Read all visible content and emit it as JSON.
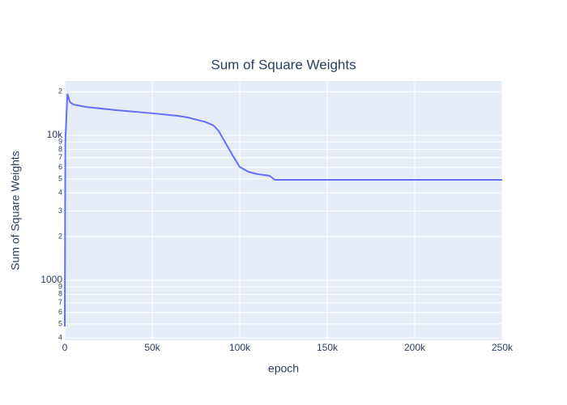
{
  "chart_data": {
    "type": "line",
    "title": "Sum of Square Weights",
    "x_label": "epoch",
    "y_label": "Sum of Square Weights",
    "x": [
      0,
      300,
      1500,
      3000,
      5000,
      12000,
      30000,
      50000,
      65000,
      70000,
      80000,
      85000,
      88000,
      92000,
      96000,
      100000,
      105000,
      110000,
      117000,
      120000,
      250000
    ],
    "values": [
      480,
      9000,
      19300,
      16900,
      16300,
      15700,
      14900,
      14200,
      13600,
      13300,
      12400,
      11700,
      10700,
      8800,
      7250,
      6050,
      5600,
      5400,
      5260,
      4930,
      4930
    ],
    "color": "#636efa",
    "xlim": [
      0,
      250000
    ],
    "xticks": [
      0,
      {
        "value": 50000,
        "label": "50k"
      },
      {
        "value": 100000,
        "label": "100k"
      },
      {
        "value": 150000,
        "label": "150k"
      },
      {
        "value": 200000,
        "label": "200k"
      },
      {
        "value": 250000,
        "label": "250k"
      }
    ],
    "ylim": [
      386,
      23700
    ],
    "log_y": true,
    "grid": true,
    "yticks": [
      {
        "value": 400,
        "label": "4"
      },
      {
        "value": 500,
        "label": "5"
      },
      {
        "value": 600,
        "label": "6"
      },
      {
        "value": 700,
        "label": "7"
      },
      {
        "value": 800,
        "label": "8"
      },
      {
        "value": 900,
        "label": "9"
      },
      1000,
      {
        "value": 2000,
        "label": "2"
      },
      {
        "value": 3000,
        "label": "3"
      },
      {
        "value": 4000,
        "label": "4"
      },
      {
        "value": 5000,
        "label": "5"
      },
      {
        "value": 6000,
        "label": "6"
      },
      {
        "value": 7000,
        "label": "7"
      },
      {
        "value": 8000,
        "label": "8"
      },
      {
        "value": 9000,
        "label": "9"
      },
      {
        "value": 10000,
        "label": "10k"
      },
      {
        "value": 20000,
        "label": "2"
      }
    ]
  }
}
